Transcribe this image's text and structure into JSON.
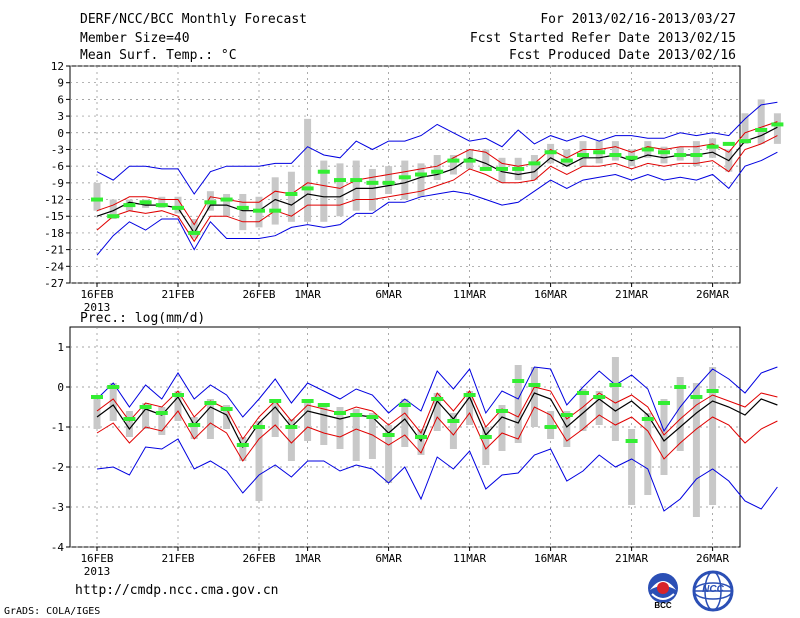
{
  "header": {
    "title": "DERF/NCC/BCC Monthly Forecast",
    "member_size": "Member Size=40",
    "variable": "Mean Surf. Temp.: °C",
    "period": "For 2013/02/16-2013/03/27",
    "started": "Fcst Started Refer Date 2013/02/15",
    "produced": "Fcst Produced Date 2013/02/16"
  },
  "footer": {
    "url": "http://cmdp.ncc.cma.gov.cn",
    "credit": "GrADS: COLA/IGES",
    "logo1_label": "BCC",
    "logo2_label": "NCC"
  },
  "colors": {
    "mean": "#000000",
    "spread": "#e00000",
    "range": "#0000e0",
    "obs": "#33ee33",
    "box": "#c8c8c8"
  },
  "chart_data": [
    {
      "type": "line",
      "title": "Mean Surf. Temp.: °C",
      "ylim": [
        -27,
        12
      ],
      "yticks": [
        -27,
        -24,
        -21,
        -18,
        -15,
        -12,
        -9,
        -6,
        -3,
        0,
        3,
        6,
        9,
        12
      ],
      "ytick_labels": [
        "-27",
        "-24",
        "-21",
        "-18",
        "-15",
        "-12",
        "-9",
        "-6",
        "-3",
        "0",
        "3",
        "6",
        "9",
        "12"
      ],
      "xlim": [
        1,
        40
      ],
      "xticks": [
        1,
        6,
        11,
        16,
        21,
        26,
        31,
        36
      ],
      "xtick_labels": [
        "16FEB",
        "21FEB",
        "26FEB",
        "1MAR",
        "6MAR",
        "11MAR",
        "16MAR",
        "21MAR",
        "26MAR"
      ],
      "xtick_positions": [
        1,
        6,
        11,
        14,
        19,
        24,
        29,
        34,
        39
      ],
      "year_label": "2013",
      "series": [
        {
          "name": "ensemble mean",
          "values": [
            -15,
            -14,
            -12.5,
            -13,
            -13,
            -13.5,
            -18,
            -13,
            -13,
            -14,
            -14,
            -12,
            -13,
            -11,
            -11.5,
            -11.5,
            -10,
            -10,
            -9.5,
            -9,
            -8,
            -7.5,
            -6.5,
            -4.5,
            -5.5,
            -7,
            -7.5,
            -7,
            -4.5,
            -6,
            -4.5,
            -4.5,
            -4,
            -5,
            -4,
            -4.5,
            -4,
            -4,
            -3.5,
            -5,
            -1.5,
            -0.5,
            1
          ]
        },
        {
          "name": "upper spread",
          "values": [
            -14,
            -13,
            -11.5,
            -11.5,
            -12,
            -12,
            -16.5,
            -11.5,
            -12,
            -12.5,
            -12.5,
            -10.5,
            -11,
            -9,
            -9.5,
            -10,
            -8.5,
            -8,
            -7.5,
            -7,
            -6.5,
            -6,
            -4.5,
            -3,
            -3.5,
            -5.5,
            -6,
            -5.5,
            -3,
            -4.5,
            -3,
            -3,
            -2.5,
            -3.5,
            -2.5,
            -3,
            -2.5,
            -2.5,
            -2,
            -3.5,
            0,
            1,
            2
          ]
        },
        {
          "name": "lower spread",
          "values": [
            -17.5,
            -15,
            -14,
            -14.5,
            -14,
            -15,
            -19.5,
            -15,
            -15,
            -16,
            -16,
            -14,
            -15,
            -13,
            -13,
            -13,
            -12,
            -12,
            -11.5,
            -11,
            -10.5,
            -9.5,
            -8.5,
            -6.5,
            -7.5,
            -9,
            -9,
            -8.5,
            -6,
            -7.5,
            -6,
            -6,
            -5.5,
            -6.5,
            -5.5,
            -6,
            -5.5,
            -5.5,
            -5,
            -7,
            -3,
            -2,
            -0.5
          ]
        },
        {
          "name": "maximum",
          "values": [
            -7,
            -8.5,
            -6,
            -6,
            -6.5,
            -6.5,
            -11,
            -7,
            -6,
            -6,
            -6,
            -5.5,
            -5.5,
            -2.5,
            -4,
            -4.5,
            -1.5,
            -3,
            -1.5,
            -1.5,
            -0.5,
            1.5,
            0,
            -1.5,
            -1,
            -2.5,
            0.5,
            -2,
            -0.5,
            -1.5,
            -0.5,
            -1.5,
            -0.5,
            -0.5,
            -1,
            -1,
            0,
            -0.5,
            0,
            -0.5,
            2.5,
            5,
            5.5
          ]
        },
        {
          "name": "minimum",
          "values": [
            -22,
            -18.5,
            -16,
            -17.5,
            -15.5,
            -15.5,
            -21,
            -16,
            -19,
            -19,
            -19,
            -18.5,
            -17,
            -16.5,
            -17,
            -16.5,
            -14.5,
            -14.5,
            -12.5,
            -12.5,
            -11.5,
            -11,
            -10.5,
            -11,
            -12,
            -13,
            -12.5,
            -10.5,
            -8.5,
            -10,
            -8.5,
            -8,
            -7.5,
            -8.5,
            -7.5,
            -8.5,
            -8,
            -8.5,
            -7.5,
            -10,
            -6,
            -5,
            -3.5
          ]
        },
        {
          "name": "observation",
          "values": [
            -12,
            -15,
            -13,
            -12.5,
            -13,
            -13.5,
            -18,
            -12.5,
            -12,
            -13.5,
            -14,
            -14,
            -11,
            -10,
            -7,
            -8.5,
            -8.5,
            -9,
            -9,
            -8,
            -7.5,
            -7,
            -5,
            -5,
            -6.5,
            -6.5,
            -6.5,
            -5.5,
            -3.5,
            -5,
            -4,
            -3.5,
            -4,
            -4.5,
            -3,
            -3.5,
            -4,
            -4,
            -2.5,
            -2,
            -1.5,
            0.5,
            1.5
          ]
        },
        {
          "name": "box top",
          "values": [
            -9,
            -12,
            -12,
            -12,
            -11.5,
            -11.5,
            -15.5,
            -10.5,
            -11,
            -11,
            -11.5,
            -8,
            -7,
            2.5,
            -5,
            -5.5,
            -5,
            -6.5,
            -6,
            -5,
            -5.5,
            -4,
            -4,
            -3,
            -3,
            -4.5,
            -4.5,
            -4,
            -2,
            -3,
            -1.5,
            -1.5,
            -1.5,
            -3,
            -1.5,
            -2.5,
            -2.5,
            -1.5,
            -1,
            -3,
            3.5,
            6,
            3.5
          ]
        },
        {
          "name": "box bottom",
          "values": [
            -14,
            -15.5,
            -14,
            -13.5,
            -13.5,
            -14.5,
            -19,
            -14,
            -15,
            -17.5,
            -17,
            -16.5,
            -16,
            -16,
            -16,
            -15,
            -14,
            -14,
            -11,
            -12,
            -11.5,
            -8.5,
            -7.5,
            -6.5,
            -6.5,
            -9,
            -8.5,
            -8.5,
            -5.5,
            -6,
            -6,
            -5.5,
            -5,
            -6,
            -4.5,
            -5.5,
            -5,
            -6,
            -4.5,
            -7,
            -2,
            -2,
            -2
          ]
        }
      ]
    },
    {
      "type": "line",
      "title": "Prec.: log(mm/d)",
      "ylim": [
        -4,
        1.5
      ],
      "yticks": [
        -4,
        -3,
        -2,
        -1,
        0,
        1
      ],
      "ytick_labels": [
        "-4",
        "-3",
        "-2",
        "-1",
        "0",
        "1"
      ],
      "xtick_labels": [
        "16FEB",
        "21FEB",
        "26FEB",
        "1MAR",
        "6MAR",
        "11MAR",
        "16MAR",
        "21MAR",
        "26MAR"
      ],
      "xtick_positions": [
        1,
        6,
        11,
        14,
        19,
        24,
        29,
        34,
        39
      ],
      "year_label": "2013",
      "series": [
        {
          "name": "ensemble mean",
          "values": [
            -0.75,
            -0.45,
            -1.05,
            -0.55,
            -0.7,
            -0.25,
            -0.95,
            -0.5,
            -0.7,
            -1.5,
            -0.9,
            -0.5,
            -1,
            -0.6,
            -0.7,
            -0.8,
            -0.7,
            -0.75,
            -1.15,
            -0.8,
            -1.35,
            -0.35,
            -0.8,
            -0.25,
            -1.2,
            -0.75,
            -0.9,
            -0.15,
            -0.3,
            -1,
            -0.65,
            -0.3,
            -0.6,
            -0.35,
            -0.7,
            -1.35,
            -1,
            -0.65,
            -0.35,
            -0.5,
            -0.7,
            -0.3,
            -0.45
          ]
        },
        {
          "name": "upper spread",
          "values": [
            -0.6,
            -0.3,
            -0.85,
            -0.4,
            -0.5,
            -0.1,
            -0.75,
            -0.35,
            -0.55,
            -1.3,
            -0.75,
            -0.35,
            -0.85,
            -0.45,
            -0.55,
            -0.65,
            -0.5,
            -0.6,
            -0.95,
            -0.65,
            -1.15,
            -0.15,
            -0.6,
            -0.1,
            -1,
            -0.55,
            -0.75,
            0,
            -0.1,
            -0.8,
            -0.5,
            -0.15,
            -0.4,
            -0.2,
            -0.5,
            -1.2,
            -0.8,
            -0.45,
            -0.2,
            -0.35,
            -0.5,
            -0.15,
            -0.25
          ]
        },
        {
          "name": "lower spread",
          "values": [
            -1.15,
            -0.9,
            -1.4,
            -1,
            -1.1,
            -0.6,
            -1.3,
            -0.9,
            -1.15,
            -1.85,
            -1.3,
            -0.95,
            -1.4,
            -1,
            -1.15,
            -1.25,
            -1.05,
            -1.2,
            -1.45,
            -1.2,
            -1.65,
            -0.75,
            -1.2,
            -0.65,
            -1.55,
            -1.15,
            -1.3,
            -0.5,
            -0.7,
            -1.35,
            -1.05,
            -0.7,
            -0.95,
            -0.75,
            -1.1,
            -1.8,
            -1.4,
            -1.05,
            -0.75,
            -0.95,
            -1.4,
            -1.05,
            -0.85
          ]
        },
        {
          "name": "maximum",
          "values": [
            -0.3,
            0.1,
            -0.5,
            0.05,
            -0.3,
            0.35,
            -0.3,
            0.05,
            -0.2,
            -0.75,
            -0.3,
            0.2,
            -0.4,
            0.1,
            -0.1,
            -0.3,
            -0.05,
            -0.2,
            -0.65,
            -0.3,
            -0.6,
            0.4,
            -0.05,
            0.45,
            -0.65,
            -0.1,
            -0.3,
            0.5,
            0.45,
            -0.45,
            0,
            0.4,
            0.05,
            0.3,
            -0.05,
            -1.1,
            -0.5,
            0,
            0.45,
            0.2,
            -0.15,
            0.35,
            0.5
          ]
        },
        {
          "name": "minimum",
          "values": [
            -2.05,
            -2,
            -2.2,
            -1.5,
            -1.55,
            -1.3,
            -2.05,
            -1.85,
            -2.1,
            -2.65,
            -2.2,
            -1.95,
            -2.25,
            -1.85,
            -1.85,
            -2.1,
            -1.95,
            -2.05,
            -2.4,
            -2,
            -2.8,
            -1.75,
            -2.05,
            -1.6,
            -2.55,
            -2.2,
            -2.15,
            -1.7,
            -1.55,
            -2.35,
            -2.1,
            -1.7,
            -2,
            -1.8,
            -2.05,
            -3.1,
            -2.8,
            -2.3,
            -2.05,
            -2.35,
            -2.85,
            -3.05,
            -2.5
          ]
        },
        {
          "name": "observation",
          "values": [
            -0.25,
            0,
            -0.8,
            -0.5,
            -0.65,
            -0.2,
            -0.95,
            -0.4,
            -0.55,
            -1.45,
            -1,
            -0.35,
            -1,
            -0.35,
            -0.45,
            -0.65,
            -0.7,
            -0.75,
            -1.2,
            -0.45,
            -1.25,
            -0.3,
            -0.85,
            -0.2,
            -1.25,
            -0.6,
            0.15,
            0.05,
            -1,
            -0.7,
            -0.15,
            -0.25,
            0.05,
            -1.35,
            -0.8,
            -0.4,
            0,
            -0.25,
            -0.1
          ]
        },
        {
          "name": "box top",
          "values": [
            -0.2,
            0.1,
            -0.6,
            -0.4,
            -0.5,
            -0.1,
            -0.75,
            -0.3,
            -0.45,
            -1.25,
            -0.85,
            -0.3,
            -0.8,
            -0.3,
            -0.4,
            -0.5,
            -0.55,
            -0.65,
            -0.95,
            -0.3,
            -1.05,
            -0.15,
            -0.65,
            -0.1,
            -1,
            -0.45,
            0.55,
            0.5,
            -0.6,
            -0.6,
            -0.05,
            -0.1,
            0.75,
            -1.05,
            -0.65,
            -0.3,
            0.25,
            0.1,
            0.5
          ]
        },
        {
          "name": "box bottom",
          "values": [
            -1.05,
            -0.85,
            -1.25,
            -1.05,
            -1.2,
            -0.85,
            -1.3,
            -1.3,
            -1.05,
            -1.85,
            -2.85,
            -1.25,
            -1.85,
            -1.35,
            -1.45,
            -1.55,
            -1.85,
            -1.8,
            -2.4,
            -1.5,
            -1.7,
            -1.1,
            -1.55,
            -0.95,
            -1.95,
            -1.6,
            -1.4,
            -1,
            -1.3,
            -1.5,
            -1.1,
            -0.95,
            -1.35,
            -2.95,
            -2.7,
            -2.2,
            -1.6,
            -3.25,
            -2.95
          ]
        }
      ]
    }
  ]
}
